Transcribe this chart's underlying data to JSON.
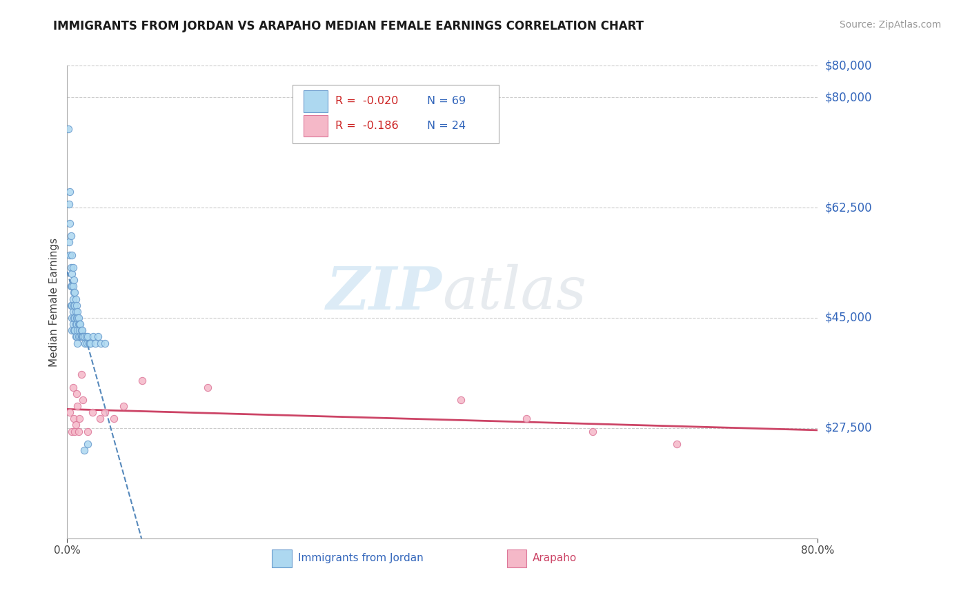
{
  "title": "IMMIGRANTS FROM JORDAN VS ARAPAHO MEDIAN FEMALE EARNINGS CORRELATION CHART",
  "source_text": "Source: ZipAtlas.com",
  "ylabel": "Median Female Earnings",
  "xmin": 0.0,
  "xmax": 0.8,
  "ymin": 10000,
  "ymax": 85000,
  "yticks": [
    27500,
    45000,
    62500,
    80000
  ],
  "ytick_labels": [
    "$27,500",
    "$45,000",
    "$62,500",
    "$80,000"
  ],
  "grid_color": "#cccccc",
  "background_color": "#ffffff",
  "jordan_color": "#add8f0",
  "jordan_edge_color": "#6699cc",
  "arapaho_color": "#f5b8c8",
  "arapaho_edge_color": "#dd7799",
  "jordan_trend_color": "#5588bb",
  "arapaho_trend_color": "#cc4466",
  "watermark_text": "ZIPatlas",
  "jordan_x": [
    0.001,
    0.002,
    0.002,
    0.003,
    0.003,
    0.003,
    0.004,
    0.004,
    0.004,
    0.004,
    0.005,
    0.005,
    0.005,
    0.005,
    0.005,
    0.005,
    0.006,
    0.006,
    0.006,
    0.006,
    0.006,
    0.007,
    0.007,
    0.007,
    0.007,
    0.007,
    0.008,
    0.008,
    0.008,
    0.008,
    0.009,
    0.009,
    0.009,
    0.009,
    0.01,
    0.01,
    0.01,
    0.01,
    0.011,
    0.011,
    0.011,
    0.011,
    0.012,
    0.012,
    0.012,
    0.013,
    0.013,
    0.014,
    0.014,
    0.015,
    0.015,
    0.016,
    0.016,
    0.017,
    0.018,
    0.019,
    0.02,
    0.021,
    0.022,
    0.023,
    0.024,
    0.025,
    0.028,
    0.03,
    0.033,
    0.036,
    0.04,
    0.022,
    0.018
  ],
  "jordan_y": [
    75000,
    63000,
    57000,
    65000,
    60000,
    55000,
    58000,
    53000,
    50000,
    47000,
    55000,
    52000,
    50000,
    47000,
    45000,
    43000,
    53000,
    50000,
    48000,
    46000,
    44000,
    51000,
    49000,
    47000,
    45000,
    43000,
    49000,
    47000,
    45000,
    43000,
    48000,
    46000,
    44000,
    42000,
    47000,
    45000,
    44000,
    42000,
    46000,
    45000,
    43000,
    41000,
    45000,
    44000,
    42000,
    44000,
    43000,
    44000,
    42000,
    43000,
    42000,
    43000,
    42000,
    42000,
    42000,
    41000,
    42000,
    41000,
    42000,
    41000,
    41000,
    41000,
    42000,
    41000,
    42000,
    41000,
    41000,
    25000,
    24000
  ],
  "arapaho_x": [
    0.003,
    0.005,
    0.006,
    0.007,
    0.008,
    0.009,
    0.01,
    0.011,
    0.012,
    0.013,
    0.015,
    0.017,
    0.022,
    0.027,
    0.035,
    0.04,
    0.05,
    0.06,
    0.08,
    0.15,
    0.42,
    0.49,
    0.56,
    0.65
  ],
  "arapaho_y": [
    30000,
    27000,
    34000,
    29000,
    27000,
    28000,
    33000,
    31000,
    27000,
    29000,
    36000,
    32000,
    27000,
    30000,
    29000,
    30000,
    29000,
    31000,
    35000,
    34000,
    32000,
    29000,
    27000,
    25000
  ]
}
